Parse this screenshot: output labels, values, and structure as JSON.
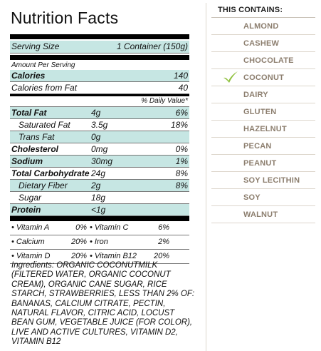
{
  "nutrition": {
    "title": "Nutrition Facts",
    "serving_label": "Serving Size",
    "serving_value": "1 Container (150g)",
    "amount_per_serving": "Amount Per Serving",
    "calories_label": "Calories",
    "calories_value": "140",
    "calories_fat_label": "Calories from Fat",
    "calories_fat_value": "40",
    "dv_header": "% Daily Value*",
    "nutrients": [
      {
        "label": "Total Fat",
        "amount": "4g",
        "dv": "6%"
      },
      {
        "label": "Saturated Fat",
        "amount": "3.5g",
        "dv": "18%"
      },
      {
        "label": "Trans Fat",
        "amount": "0g",
        "dv": ""
      },
      {
        "label": "Cholesterol",
        "amount": "0mg",
        "dv": "0%"
      },
      {
        "label": "Sodium",
        "amount": "30mg",
        "dv": "1%"
      },
      {
        "label": "Total Carbohydrate",
        "amount": "24g",
        "dv": "8%"
      },
      {
        "label": "Dietary Fiber",
        "amount": "2g",
        "dv": "8%"
      },
      {
        "label": "Sugar",
        "amount": "18g",
        "dv": ""
      },
      {
        "label": "Protein",
        "amount": "<1g",
        "dv": ""
      }
    ],
    "vitamins": [
      {
        "a_name": "• Vitamin A",
        "a_val": "0%",
        "b_name": "• Vitamin C",
        "b_val": "6%"
      },
      {
        "a_name": "• Calcium",
        "a_val": "20%",
        "b_name": "• Iron",
        "b_val": "2%"
      },
      {
        "a_name": "• Vitamin D",
        "a_val": "20%",
        "b_name": "• Vitamin B12",
        "b_val": "20%"
      }
    ],
    "ingredients": "Ingredients: ORGANIC COCONUTMILK (FILTERED WATER, ORGANIC COCONUT CREAM), ORGANIC CANE SUGAR, RICE STARCH, STRAWBERRIES, LESS THAN 2% OF: BANANAS, CALCIUM CITRATE, PECTIN, NATURAL FLAVOR, CITRIC ACID, LOCUST BEAN GUM, VEGETABLE JUICE (FOR COLOR), LIVE AND ACTIVE CULTURES, VITAMIN D2, VITAMIN B12"
  },
  "contains": {
    "title": "THIS CONTAINS:",
    "items": [
      {
        "label": "ALMOND",
        "checked": false
      },
      {
        "label": "CASHEW",
        "checked": false
      },
      {
        "label": "CHOCOLATE",
        "checked": false
      },
      {
        "label": "COCONUT",
        "checked": true
      },
      {
        "label": "DAIRY",
        "checked": false
      },
      {
        "label": "GLUTEN",
        "checked": false
      },
      {
        "label": "HAZELNUT",
        "checked": false
      },
      {
        "label": "PECAN",
        "checked": false
      },
      {
        "label": "PEANUT",
        "checked": false
      },
      {
        "label": "SOY LECITHIN",
        "checked": false
      },
      {
        "label": "SOY",
        "checked": false
      },
      {
        "label": "WALNUT",
        "checked": false
      }
    ],
    "check_icon": "checkmark-icon",
    "check_color": "#8fc13e"
  },
  "colors": {
    "teal_row": "#c6e6e3",
    "allergen_text": "#8c7e6e"
  }
}
